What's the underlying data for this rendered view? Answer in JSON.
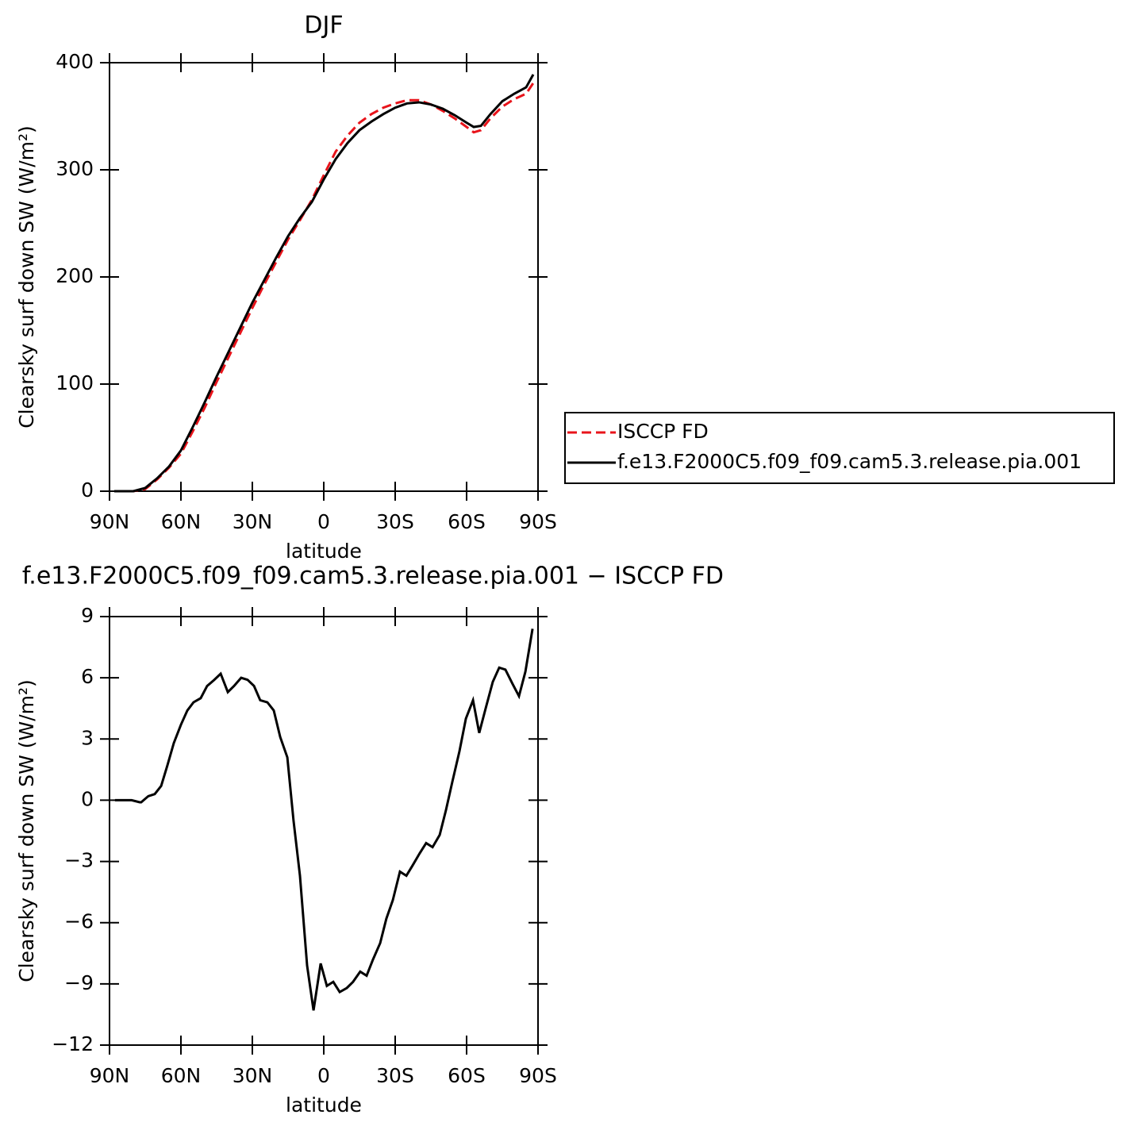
{
  "chart_data": [
    {
      "type": "line",
      "title": "DJF",
      "xlabel": "latitude",
      "ylabel": "Clearsky surf down SW (W/m²)",
      "x": [
        88,
        80,
        75,
        70,
        65,
        60,
        55,
        50,
        45,
        40,
        35,
        30,
        25,
        20,
        15,
        10,
        5,
        0,
        -5,
        -10,
        -15,
        -20,
        -25,
        -30,
        -35,
        -40,
        -45,
        -50,
        -55,
        -60,
        -63,
        -66,
        -70,
        -75,
        -80,
        -85,
        -88
      ],
      "series": [
        {
          "name": "ISCCP FD",
          "color": "#e8141b",
          "dashed": true,
          "values": [
            0,
            0,
            2,
            11,
            22,
            35,
            56,
            78,
            102,
            125,
            148,
            171,
            193,
            214,
            235,
            253,
            272,
            295,
            317,
            332,
            344,
            352,
            358,
            362,
            365,
            365,
            361,
            355,
            348,
            340,
            335,
            337,
            348,
            359,
            366,
            371,
            381
          ]
        },
        {
          "name": "f.e13.F2000C5.f09_f09.cam5.3.release.pia.001",
          "color": "#000000",
          "dashed": false,
          "values": [
            0,
            0,
            3,
            12,
            23,
            38,
            60,
            83,
            107,
            130,
            153,
            176,
            197,
            218,
            238,
            255,
            270,
            291,
            310,
            325,
            337,
            345,
            352,
            358,
            362,
            363,
            361,
            357,
            351,
            344,
            340,
            341,
            352,
            364,
            371,
            377,
            389
          ]
        }
      ],
      "xlim": [
        90,
        -90
      ],
      "xticks": [
        {
          "value": 90,
          "label": "90N"
        },
        {
          "value": 60,
          "label": "60N"
        },
        {
          "value": 30,
          "label": "30N"
        },
        0,
        {
          "value": -30,
          "label": "30S"
        },
        {
          "value": -60,
          "label": "60S"
        },
        {
          "value": -90,
          "label": "90S"
        }
      ],
      "ylim": [
        0,
        400
      ],
      "yticks": [
        0,
        100,
        200,
        300,
        400
      ],
      "legend": "right"
    },
    {
      "type": "line",
      "title": "f.e13.F2000C5.f09_f09.cam5.3.release.pia.001 − ISCCP FD",
      "xlabel": "latitude",
      "ylabel": "Clearsky surf down SW (W/m²)",
      "x": [
        87.7,
        80.7,
        77.3,
        76.7,
        73.7,
        71,
        68.3,
        65.7,
        63,
        60,
        57.3,
        54.7,
        51.7,
        49,
        46,
        43.3,
        40.3,
        37.7,
        34.7,
        32,
        29.3,
        26.7,
        23.7,
        21,
        18.3,
        15.3,
        12.7,
        10,
        7,
        4.3,
        1.3,
        -1.3,
        -4,
        -6.7,
        -9.7,
        -12.3,
        -15.3,
        -18,
        -20.7,
        -23.7,
        -26.3,
        -29,
        -32,
        -34.7,
        -37.3,
        -40.3,
        -43,
        -45.7,
        -48.7,
        -51.3,
        -54,
        -57,
        -59.7,
        -62.7,
        -65.3,
        -68,
        -71,
        -73.7,
        -76.3,
        -79.3,
        -82,
        -84.7,
        -87.7
      ],
      "series": [
        {
          "color": "#000000",
          "dashed": false,
          "values": [
            0,
            0,
            -0.1,
            -0.1,
            0.2,
            0.3,
            0.7,
            1.7,
            2.8,
            3.7,
            4.4,
            4.8,
            5.0,
            5.6,
            5.9,
            6.2,
            5.3,
            5.6,
            6.0,
            5.9,
            5.6,
            4.9,
            4.8,
            4.4,
            3.1,
            2.1,
            -1.0,
            -3.7,
            -8.1,
            -10.3,
            -8.0,
            -9.1,
            -8.9,
            -9.4,
            -9.2,
            -8.9,
            -8.4,
            -8.6,
            -7.8,
            -7.0,
            -5.8,
            -4.9,
            -3.5,
            -3.7,
            -3.2,
            -2.6,
            -2.1,
            -2.3,
            -1.7,
            -0.5,
            0.9,
            2.4,
            4.0,
            4.9,
            3.3,
            4.5,
            5.8,
            6.5,
            6.4,
            5.7,
            5.1,
            6.3,
            8.4
          ]
        }
      ],
      "xlim": [
        90,
        -90
      ],
      "xticks": [
        {
          "value": 90,
          "label": "90N"
        },
        {
          "value": 60,
          "label": "60N"
        },
        {
          "value": 30,
          "label": "30N"
        },
        0,
        {
          "value": -30,
          "label": "30S"
        },
        {
          "value": -60,
          "label": "60S"
        },
        {
          "value": -90,
          "label": "90S"
        }
      ],
      "ylim": [
        -12,
        9
      ],
      "yticks": [
        {
          "value": -12,
          "label": "−12"
        },
        {
          "value": -9,
          "label": "−9"
        },
        {
          "value": -6,
          "label": "−6"
        },
        {
          "value": -3,
          "label": "−3"
        },
        0,
        3,
        6,
        9
      ]
    }
  ]
}
